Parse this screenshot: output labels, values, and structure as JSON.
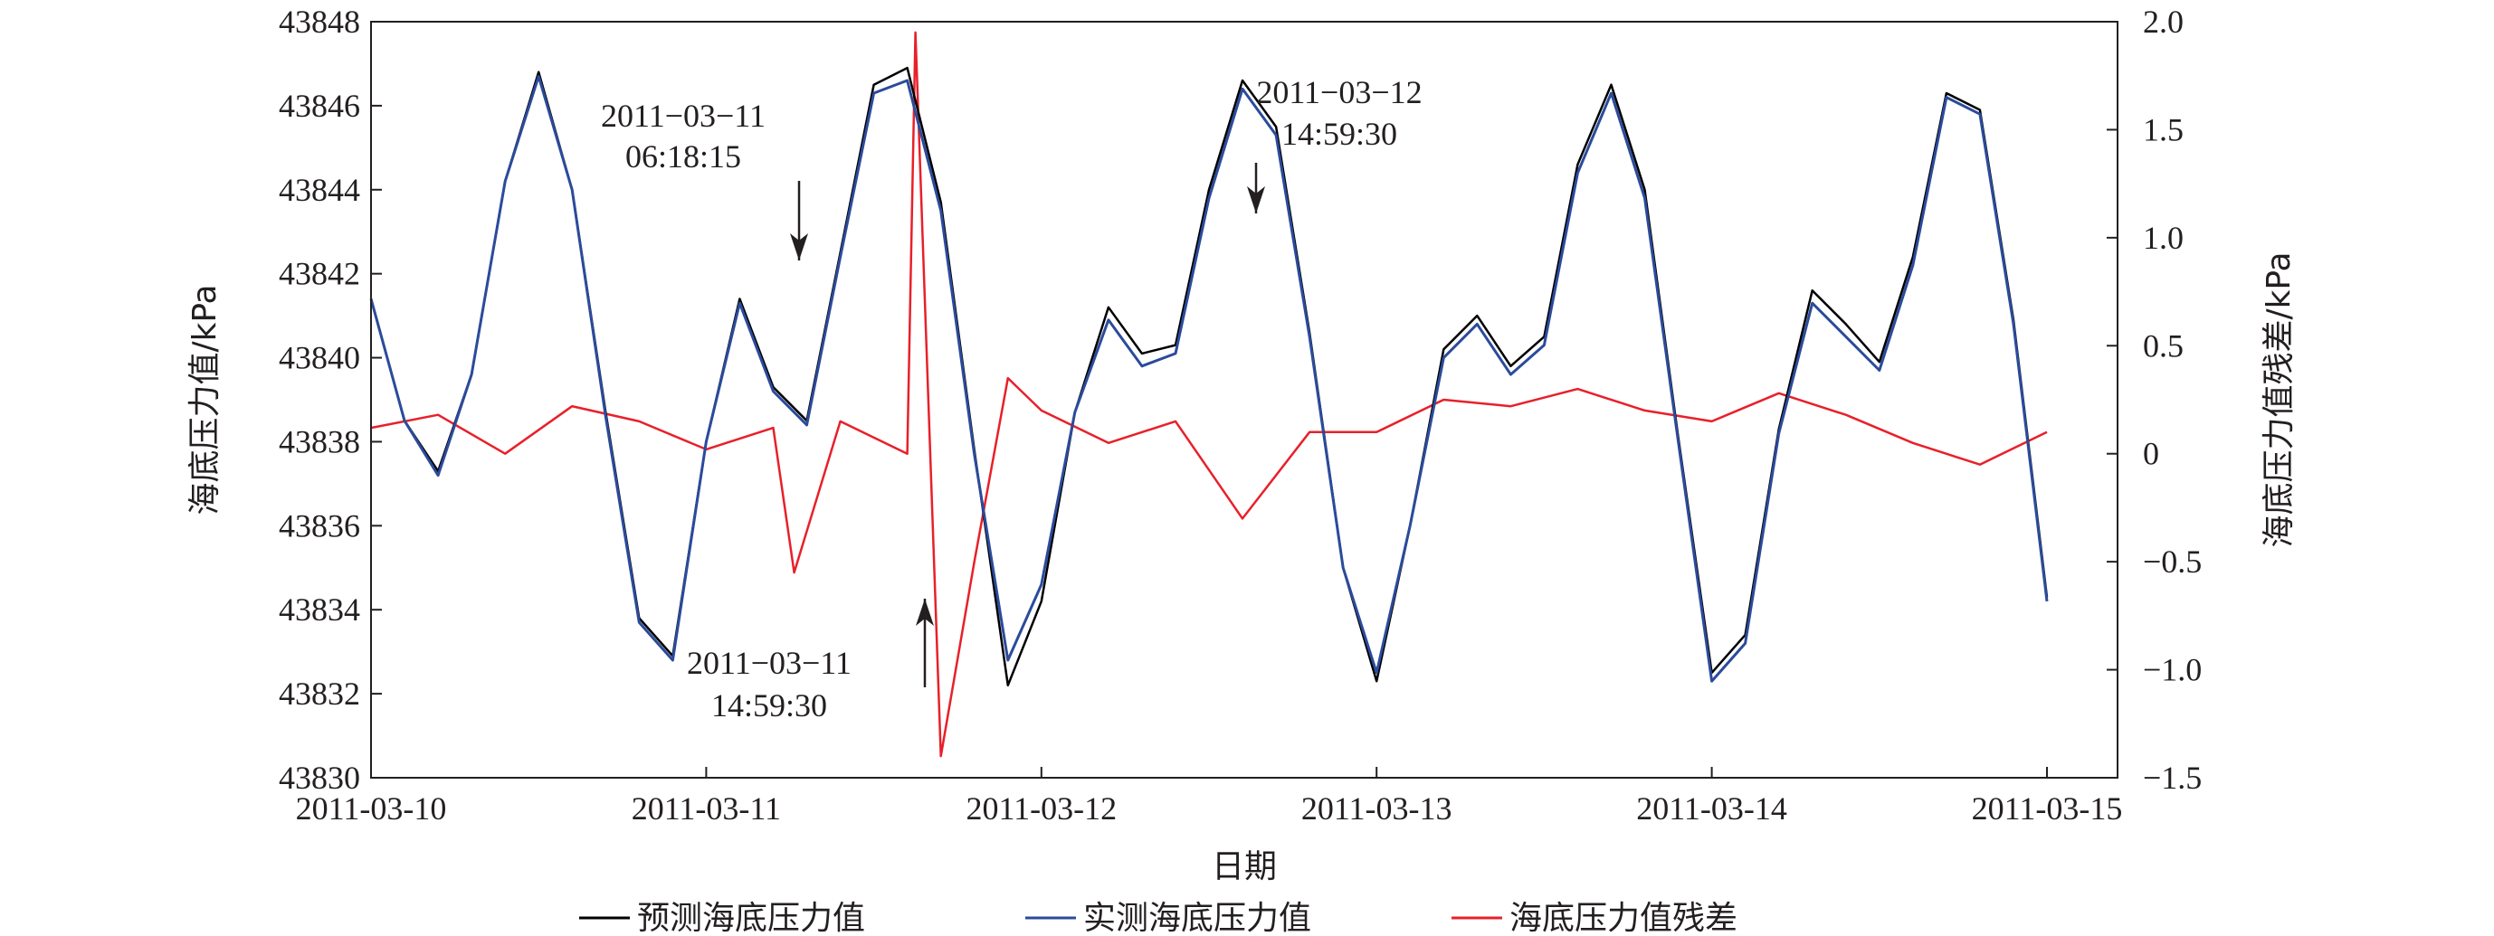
{
  "chart_data": {
    "type": "line",
    "xlabel": "日期",
    "ylabel_left": "海底压力值/kPa",
    "ylabel_right": "海底压力值残差/kPa",
    "x_range": [
      "2011-03-10 00:00",
      "2011-03-15 03:00"
    ],
    "x_ticks": [
      "2011-03-10",
      "2011-03-11",
      "2011-03-12",
      "2011-03-13",
      "2011-03-14",
      "2011-03-15"
    ],
    "ylim_left": [
      43830,
      43848
    ],
    "yticks_left": [
      "43830",
      "43832",
      "43834",
      "43836",
      "43838",
      "43840",
      "43842",
      "43844",
      "43846",
      "43848"
    ],
    "ylim_right": [
      -1.5,
      2.0
    ],
    "yticks_right": [
      "−1.5",
      "−1.0",
      "−0.5",
      "0",
      "0.5",
      "1.0",
      "1.5",
      "2.0"
    ],
    "grid": false,
    "legend_position": "bottom",
    "series": [
      {
        "name": "预测海底压力值",
        "color": "#000000",
        "axis": "left",
        "x": [
          "2011-03-10 00:00",
          "2011-03-10 02:24",
          "2011-03-10 04:48",
          "2011-03-10 07:12",
          "2011-03-10 09:36",
          "2011-03-10 12:00",
          "2011-03-10 14:24",
          "2011-03-10 16:48",
          "2011-03-10 19:12",
          "2011-03-10 21:36",
          "2011-03-11 00:00",
          "2011-03-11 02:24",
          "2011-03-11 04:48",
          "2011-03-11 07:12",
          "2011-03-11 09:36",
          "2011-03-11 12:00",
          "2011-03-11 14:24",
          "2011-03-11 16:48",
          "2011-03-11 19:12",
          "2011-03-11 21:36",
          "2011-03-12 00:00",
          "2011-03-12 02:24",
          "2011-03-12 04:48",
          "2011-03-12 07:12",
          "2011-03-12 09:36",
          "2011-03-12 12:00",
          "2011-03-12 14:24",
          "2011-03-12 16:48",
          "2011-03-12 19:12",
          "2011-03-12 21:36",
          "2011-03-13 00:00",
          "2011-03-13 02:24",
          "2011-03-13 04:48",
          "2011-03-13 07:12",
          "2011-03-13 09:36",
          "2011-03-13 12:00",
          "2011-03-13 14:24",
          "2011-03-13 16:48",
          "2011-03-13 19:12",
          "2011-03-13 21:36",
          "2011-03-14 00:00",
          "2011-03-14 02:24",
          "2011-03-14 04:48",
          "2011-03-14 07:12",
          "2011-03-14 09:36",
          "2011-03-14 12:00",
          "2011-03-14 14:24",
          "2011-03-14 16:48",
          "2011-03-14 19:12",
          "2011-03-14 21:36",
          "2011-03-15 00:00"
        ],
        "values": [
          43841.4,
          43838.5,
          43837.3,
          43839.6,
          43844.2,
          43846.8,
          43844.0,
          43838.7,
          43833.8,
          43832.9,
          43838.0,
          43841.4,
          43839.3,
          43838.5,
          43842.5,
          43846.5,
          43846.9,
          43843.7,
          43837.8,
          43832.2,
          43834.2,
          43838.7,
          43841.2,
          43840.1,
          43840.3,
          43844.0,
          43846.6,
          43845.5,
          43840.6,
          43835.0,
          43832.3,
          43836.0,
          43840.2,
          43841.0,
          43839.8,
          43840.5,
          43844.6,
          43846.5,
          43844.0,
          43838.1,
          43832.5,
          43833.4,
          43838.3,
          43841.6,
          43840.8,
          43839.9,
          43842.4,
          43846.3,
          43845.9,
          43840.9,
          43834.3
        ]
      },
      {
        "name": "实测海底压力值",
        "color": "#2b4b9b",
        "axis": "left",
        "x": [
          "2011-03-10 00:00",
          "2011-03-10 02:24",
          "2011-03-10 04:48",
          "2011-03-10 07:12",
          "2011-03-10 09:36",
          "2011-03-10 12:00",
          "2011-03-10 14:24",
          "2011-03-10 16:48",
          "2011-03-10 19:12",
          "2011-03-10 21:36",
          "2011-03-11 00:00",
          "2011-03-11 02:24",
          "2011-03-11 04:48",
          "2011-03-11 07:12",
          "2011-03-11 09:36",
          "2011-03-11 12:00",
          "2011-03-11 14:24",
          "2011-03-11 16:48",
          "2011-03-11 19:12",
          "2011-03-11 21:36",
          "2011-03-12 00:00",
          "2011-03-12 02:24",
          "2011-03-12 04:48",
          "2011-03-12 07:12",
          "2011-03-12 09:36",
          "2011-03-12 12:00",
          "2011-03-12 14:24",
          "2011-03-12 16:48",
          "2011-03-12 19:12",
          "2011-03-12 21:36",
          "2011-03-13 00:00",
          "2011-03-13 02:24",
          "2011-03-13 04:48",
          "2011-03-13 07:12",
          "2011-03-13 09:36",
          "2011-03-13 12:00",
          "2011-03-13 14:24",
          "2011-03-13 16:48",
          "2011-03-13 19:12",
          "2011-03-13 21:36",
          "2011-03-14 00:00",
          "2011-03-14 02:24",
          "2011-03-14 04:48",
          "2011-03-14 07:12",
          "2011-03-14 09:36",
          "2011-03-14 12:00",
          "2011-03-14 14:24",
          "2011-03-14 16:48",
          "2011-03-14 19:12",
          "2011-03-14 21:36",
          "2011-03-15 00:00"
        ],
        "values": [
          43841.4,
          43838.5,
          43837.2,
          43839.6,
          43844.2,
          43846.7,
          43844.0,
          43838.6,
          43833.7,
          43832.8,
          43838.0,
          43841.3,
          43839.2,
          43838.4,
          43842.4,
          43846.3,
          43846.6,
          43843.5,
          43837.7,
          43832.8,
          43834.6,
          43838.7,
          43840.9,
          43839.8,
          43840.1,
          43843.8,
          43846.4,
          43845.3,
          43840.5,
          43835.0,
          43832.5,
          43836.0,
          43840.0,
          43840.8,
          43839.6,
          43840.3,
          43844.4,
          43846.3,
          43843.8,
          43838.0,
          43832.3,
          43833.2,
          43838.2,
          43841.3,
          43840.5,
          43839.7,
          43842.2,
          43846.2,
          43845.8,
          43840.8,
          43834.2
        ]
      },
      {
        "name": "海底压力值残差",
        "color": "#e8202a",
        "axis": "right",
        "x": [
          "2011-03-10 00:00",
          "2011-03-10 04:48",
          "2011-03-10 09:36",
          "2011-03-10 14:24",
          "2011-03-10 19:12",
          "2011-03-11 00:00",
          "2011-03-11 04:48",
          "2011-03-11 06:18",
          "2011-03-11 09:36",
          "2011-03-11 14:24",
          "2011-03-11 14:59",
          "2011-03-11 16:48",
          "2011-03-11 19:12",
          "2011-03-11 21:36",
          "2011-03-12 00:00",
          "2011-03-12 04:48",
          "2011-03-12 09:36",
          "2011-03-12 14:24",
          "2011-03-12 19:12",
          "2011-03-13 00:00",
          "2011-03-13 04:48",
          "2011-03-13 09:36",
          "2011-03-13 14:24",
          "2011-03-13 19:12",
          "2011-03-14 00:00",
          "2011-03-14 04:48",
          "2011-03-14 09:36",
          "2011-03-14 14:24",
          "2011-03-14 19:12",
          "2011-03-15 00:00"
        ],
        "values": [
          0.12,
          0.18,
          0.0,
          0.22,
          0.15,
          0.02,
          0.12,
          -0.55,
          0.15,
          0.0,
          1.95,
          -1.4,
          -0.5,
          0.35,
          0.2,
          0.05,
          0.15,
          -0.3,
          0.1,
          0.1,
          0.25,
          0.22,
          0.3,
          0.2,
          0.15,
          0.28,
          0.18,
          0.05,
          -0.05,
          0.1
        ]
      }
    ],
    "annotations": [
      {
        "text": [
          "2011−03−11",
          "06:18:15"
        ],
        "points_to": "2011-03-11 06:18"
      },
      {
        "text": [
          "2011−03−12",
          "14:59:30"
        ],
        "points_to": "2011-03-12 14:59"
      },
      {
        "text": [
          "2011−03−11",
          "14:59:30"
        ],
        "points_to": "2011-03-11 14:59"
      }
    ]
  }
}
